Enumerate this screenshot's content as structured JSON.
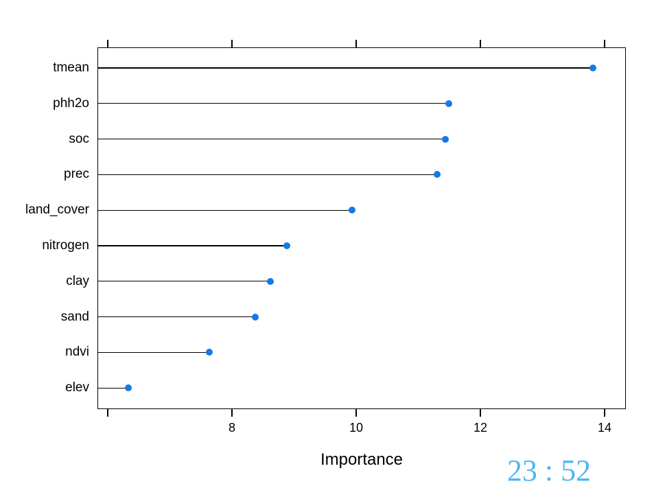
{
  "chart_data": {
    "type": "scatter",
    "variant": "dotchart-lollipop",
    "title": "",
    "xlabel": "Importance",
    "ylabel": "",
    "categories": [
      "tmean",
      "phh2o",
      "soc",
      "prec",
      "land_cover",
      "nitrogen",
      "clay",
      "sand",
      "ndvi",
      "elev"
    ],
    "values": [
      13.81,
      11.49,
      11.44,
      11.3,
      9.93,
      8.88,
      8.62,
      8.38,
      7.64,
      6.33
    ],
    "xlim": [
      5.83,
      14.35
    ],
    "x_ticks": [
      6,
      8,
      10,
      12,
      14
    ],
    "x_tick_labels": [
      "",
      "8",
      "10",
      "12",
      "14"
    ],
    "axis_sides": [
      "bottom",
      "top"
    ],
    "grid": false,
    "legend": "none",
    "point_color": "#1778E8",
    "line_color": "#000000",
    "background_color": "#FFFFFF"
  },
  "overlay": {
    "clock_text": "23 : 52",
    "clock_color": "#4FB6F2"
  }
}
